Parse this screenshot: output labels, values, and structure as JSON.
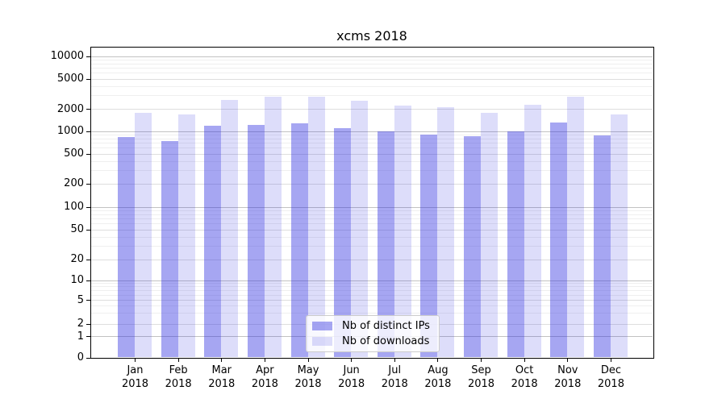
{
  "chart_data": {
    "type": "bar",
    "title": "xcms 2018",
    "categories": [
      "Jan",
      "Feb",
      "Mar",
      "Apr",
      "May",
      "Jun",
      "Jul",
      "Aug",
      "Sep",
      "Oct",
      "Nov",
      "Dec"
    ],
    "category_year": "2018",
    "yscale": "symlog",
    "ylim": [
      0,
      13000
    ],
    "yticks": [
      0,
      1,
      2,
      5,
      10,
      20,
      50,
      100,
      200,
      500,
      1000,
      2000,
      5000,
      10000
    ],
    "grid": true,
    "legend_position": "lower center",
    "series": [
      {
        "name": "Nb of distinct IPs",
        "color": "rgba(42,42,224,0.42)",
        "values": [
          840,
          745,
          1190,
          1220,
          1290,
          1110,
          1010,
          900,
          860,
          1010,
          1320,
          880
        ]
      },
      {
        "name": "Nb of downloads",
        "color": "rgba(42,42,224,0.16)",
        "values": [
          1800,
          1700,
          2670,
          2890,
          2950,
          2560,
          2210,
          2120,
          1800,
          2300,
          2890,
          1700
        ]
      }
    ]
  }
}
